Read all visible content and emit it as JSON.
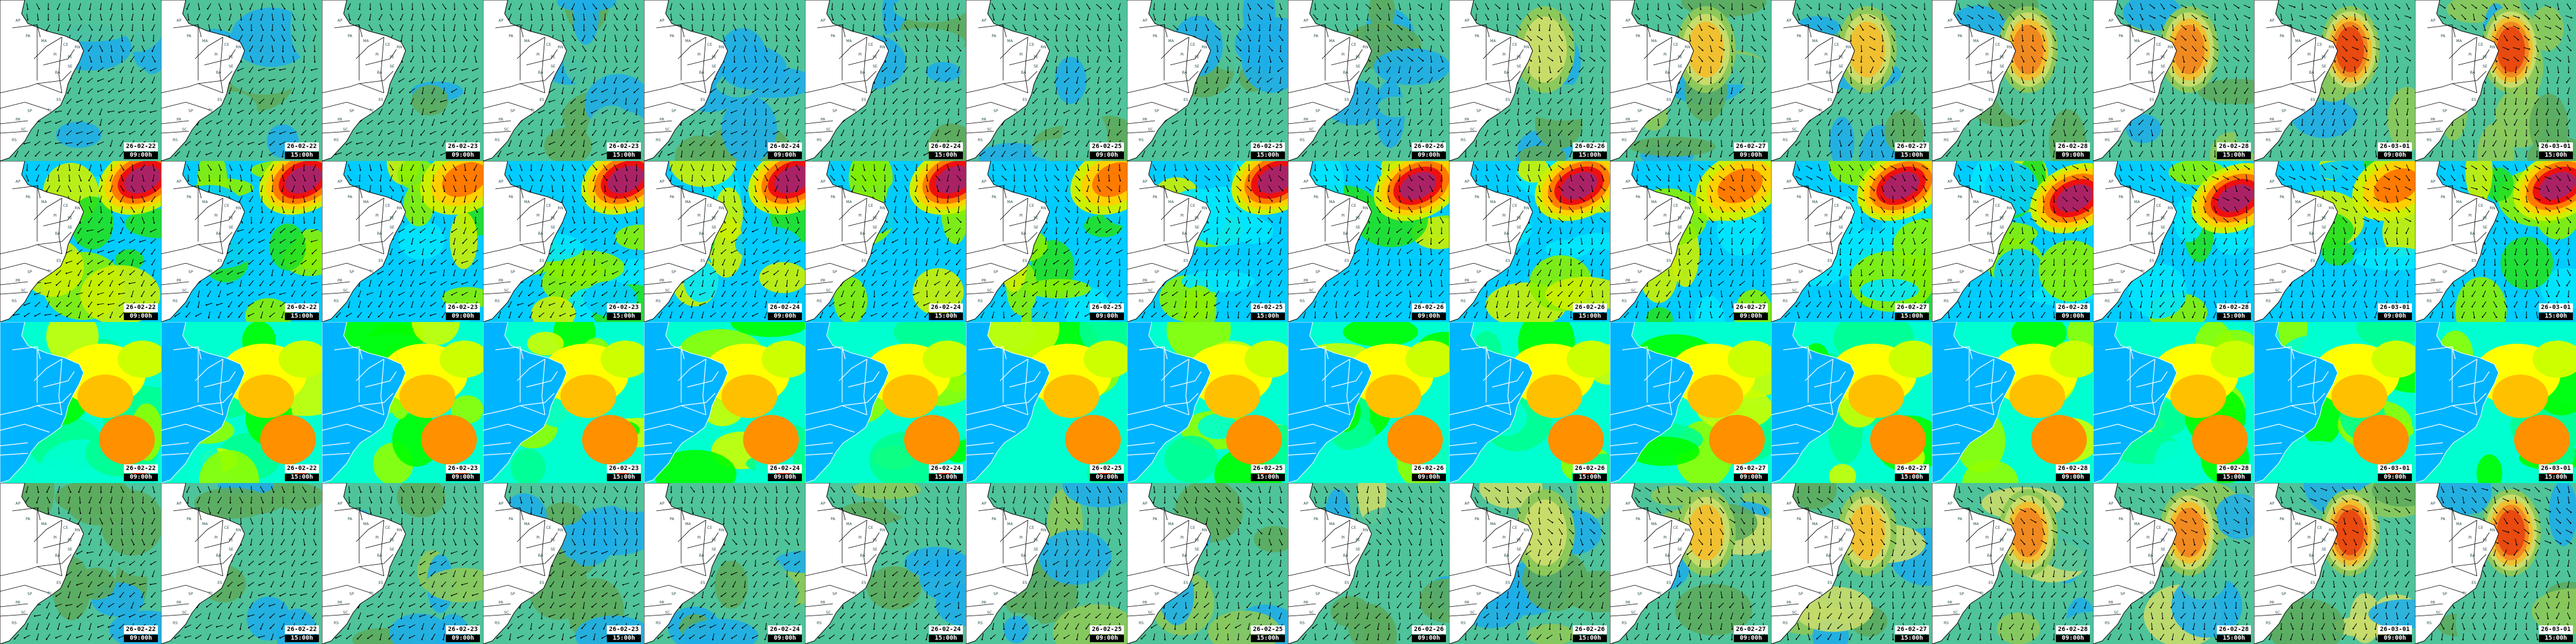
{
  "frames": [
    {
      "date": "26-02-22",
      "time": "09:00h"
    },
    {
      "date": "26-02-22",
      "time": "15:00h"
    },
    {
      "date": "26-02-23",
      "time": "09:00h"
    },
    {
      "date": "26-02-23",
      "time": "15:00h"
    },
    {
      "date": "26-02-24",
      "time": "09:00h"
    },
    {
      "date": "26-02-24",
      "time": "15:00h"
    },
    {
      "date": "26-02-25",
      "time": "09:00h"
    },
    {
      "date": "26-02-25",
      "time": "15:00h"
    },
    {
      "date": "26-02-26",
      "time": "09:00h"
    },
    {
      "date": "26-02-26",
      "time": "15:00h"
    },
    {
      "date": "26-02-27",
      "time": "09:00h"
    },
    {
      "date": "26-02-27",
      "time": "15:00h"
    },
    {
      "date": "26-02-28",
      "time": "09:00h"
    },
    {
      "date": "26-02-28",
      "time": "15:00h"
    },
    {
      "date": "26-03-01",
      "time": "09:00h"
    },
    {
      "date": "26-03-01",
      "time": "15:00h"
    }
  ],
  "states": [
    "AP",
    "PA",
    "MA",
    "CE",
    "RN",
    "PI",
    "PE",
    "SE",
    "BA",
    "ES",
    "RJ",
    "SP",
    "PR",
    "SC",
    "RS"
  ],
  "rows": [
    {
      "name": "wind-map-row-1",
      "land": "#ffffff",
      "border": "#000000",
      "arrows": true,
      "state_labels": true,
      "palette": [
        "#1eaee8",
        "#4fc39a",
        "#5cab5e",
        "#8cc95a",
        "#c8dc6a",
        "#f0c030",
        "#f08a20",
        "#e84a10"
      ]
    },
    {
      "name": "wind-map-row-2",
      "land": "#ffffff",
      "border": "#000000",
      "arrows": true,
      "state_labels": true,
      "palette": [
        "#00e5ff",
        "#00ccff",
        "#22e022",
        "#88f000",
        "#ccf000",
        "#ffd000",
        "#ff7a00",
        "#ee1010",
        "#aa2266"
      ]
    },
    {
      "name": "field-map-row-3",
      "land": "#00b4ff",
      "border": "#ffffff",
      "arrows": false,
      "state_labels": false,
      "palette": [
        "#00ffd0",
        "#00ff90",
        "#00ff00",
        "#90ff00",
        "#ccff00",
        "#ffff00",
        "#ffc000",
        "#ff9000",
        "#ff4000"
      ]
    },
    {
      "name": "wind-map-row-4",
      "land": "#ffffff",
      "border": "#000000",
      "arrows": true,
      "state_labels": true,
      "palette": [
        "#1eaee8",
        "#4fc39a",
        "#5cab5e",
        "#8cc95a",
        "#c8dc6a",
        "#f0c030",
        "#f08a20",
        "#e84a10"
      ]
    }
  ]
}
